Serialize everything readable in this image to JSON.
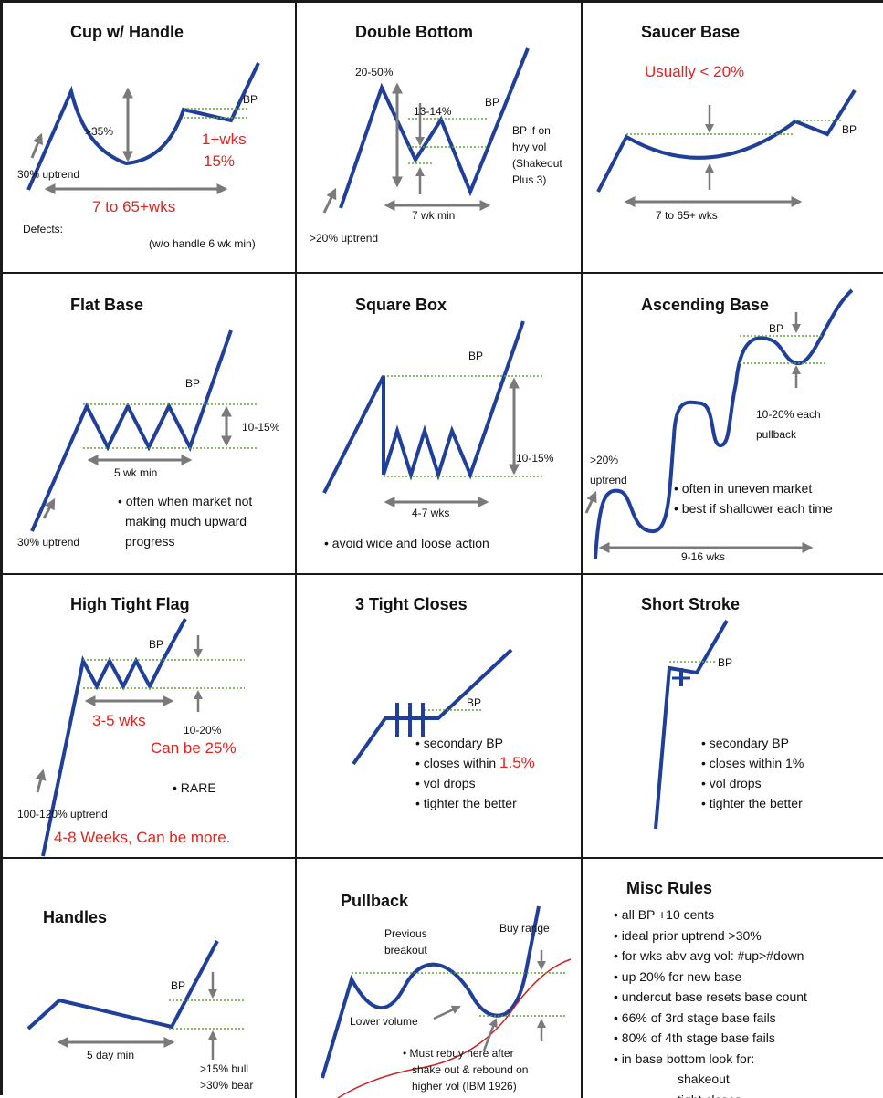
{
  "cells": {
    "cup": {
      "title": "Cup w/ Handle",
      "bp": "BP",
      "depth": ">35%",
      "uptrend": "30% uptrend",
      "handle_wks": "1+wks",
      "handle_pct": "15%",
      "length": "7 to 65+wks",
      "defects": "Defects:",
      "note": "(w/o handle 6 wk min)"
    },
    "double_bottom": {
      "title": "Double Bottom",
      "depth": "20-50%",
      "mid": "13-14%",
      "bp": "BP",
      "bp_note": [
        "BP if on",
        "hvy vol",
        "(Shakeout",
        "Plus 3)"
      ],
      "length": "7 wk min",
      "uptrend": ">20% uptrend"
    },
    "saucer": {
      "title": "Saucer Base",
      "depth": "Usually < 20%",
      "bp": "BP",
      "length": "7 to 65+ wks"
    },
    "flat": {
      "title": "Flat Base",
      "bp": "BP",
      "depth": "10-15%",
      "length": "5 wk min",
      "uptrend": "30% uptrend",
      "notes": [
        "• often when market not",
        "making much upward",
        "progress"
      ]
    },
    "square": {
      "title": "Square Box",
      "bp": "BP",
      "depth": "10-15%",
      "length": "4-7 wks",
      "note": "• avoid wide and loose action"
    },
    "ascending": {
      "title": "Ascending Base",
      "bp": "BP",
      "pullback": [
        "10-20% each",
        "pullback"
      ],
      "uptrend": [
        ">20%",
        "uptrend"
      ],
      "notes": [
        "• often in uneven market",
        "• best if shallower each time"
      ],
      "length": "9-16 wks"
    },
    "htf": {
      "title": "High Tight Flag",
      "bp": "BP",
      "length": "3-5 wks",
      "depth": "10-20%",
      "can_be": "Can be 25%",
      "rare": "• RARE",
      "uptrend": "100-120% uptrend",
      "weeks": "4-8 Weeks, Can be more."
    },
    "three_tight": {
      "title": "3 Tight Closes",
      "bp": "BP",
      "bullets": [
        "• secondary BP",
        "• closes within",
        "• vol drops",
        "• tighter the better"
      ],
      "pct": "1.5%"
    },
    "short_stroke": {
      "title": "Short Stroke",
      "bp": "BP",
      "bullets": [
        "• secondary BP",
        "• closes within 1%",
        "• vol drops",
        "• tighter the better"
      ]
    },
    "handles": {
      "title": "Handles",
      "bp": "BP",
      "length": "5 day min",
      "bull": ">15% bull",
      "bear": ">30% bear"
    },
    "pullback": {
      "title": "Pullback",
      "prev": [
        "Previous",
        "breakout"
      ],
      "buy_range": "Buy range",
      "lower_vol": "Lower volume",
      "rebuy": [
        "• Must rebuy here after",
        "shake out & rebound on",
        "higher vol (IBM 1926)"
      ]
    },
    "misc": {
      "title": "Misc Rules",
      "rules": [
        "• all BP +10 cents",
        "• ideal prior uptrend >30%",
        "• for wks abv avg vol: #up>#down",
        "• up 20% for new base",
        "• undercut base resets base count",
        "• 66% of 3rd stage base fails",
        "• 80% of 4th stage base fails",
        "• in base bottom look for:",
        "shakeout",
        "tight closes"
      ]
    }
  },
  "colors": {
    "line": "#1f3f99",
    "green": "#5aa832",
    "arrow": "#7a7a7a",
    "red": "#e0241f",
    "border": "#1a1a1a"
  }
}
